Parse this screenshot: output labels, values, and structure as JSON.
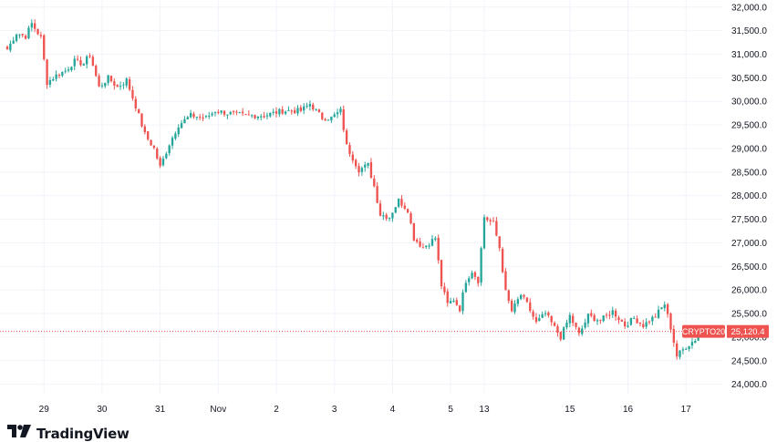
{
  "brand": {
    "name": "TradingView",
    "logo_icon": "tradingview-logo-icon"
  },
  "colors": {
    "up": "#26a69a",
    "down": "#ef5350",
    "grid": "#f0f3fa",
    "price_line": "#ef5350",
    "label_bg": "#ef5350",
    "label_text": "#ffffff"
  },
  "price_label": {
    "symbol": "CRYPTO20",
    "value": "25,120.4"
  },
  "chart_data": {
    "type": "candlestick",
    "y_axis": {
      "position": "right",
      "range": [
        23800,
        32150
      ],
      "ticks": [
        {
          "value": 24000,
          "label": "24,000.0"
        },
        {
          "value": 24500,
          "label": "24,500.0"
        },
        {
          "value": 25000,
          "label": "25,000.0"
        },
        {
          "value": 25500,
          "label": "25,500.0"
        },
        {
          "value": 26000,
          "label": "26,000.0"
        },
        {
          "value": 26500,
          "label": "26,500.0"
        },
        {
          "value": 27000,
          "label": "27,000.0"
        },
        {
          "value": 27500,
          "label": "27,500.0"
        },
        {
          "value": 28000,
          "label": "28,000.0"
        },
        {
          "value": 28500,
          "label": "28,500.0"
        },
        {
          "value": 29000,
          "label": "29,000.0"
        },
        {
          "value": 29500,
          "label": "29,500.0"
        },
        {
          "value": 30000,
          "label": "30,000.0"
        },
        {
          "value": 30500,
          "label": "30,500.0"
        },
        {
          "value": 31000,
          "label": "31,000.0"
        },
        {
          "value": 31500,
          "label": "31,500.0"
        },
        {
          "value": 32000,
          "label": "32,000.0"
        }
      ]
    },
    "x_axis": {
      "ticks": [
        {
          "index": 12,
          "label": "29"
        },
        {
          "index": 31,
          "label": "30"
        },
        {
          "index": 50,
          "label": "31"
        },
        {
          "index": 69,
          "label": "Nov"
        },
        {
          "index": 88,
          "label": "2"
        },
        {
          "index": 107,
          "label": "3"
        },
        {
          "index": 126,
          "label": "4"
        },
        {
          "index": 145,
          "label": "5"
        },
        {
          "index": 156,
          "label": "13"
        },
        {
          "index": 184,
          "label": "15"
        },
        {
          "index": 203,
          "label": "16"
        },
        {
          "index": 222,
          "label": "17"
        }
      ]
    },
    "grid": true,
    "last_price": 25120.4,
    "anchors": [
      [
        0,
        31100
      ],
      [
        3,
        31450
      ],
      [
        6,
        31380
      ],
      [
        8,
        31650
      ],
      [
        11,
        31350
      ],
      [
        13,
        30400
      ],
      [
        16,
        30550
      ],
      [
        19,
        30650
      ],
      [
        22,
        30850
      ],
      [
        25,
        30800
      ],
      [
        27,
        31000
      ],
      [
        30,
        30300
      ],
      [
        33,
        30500
      ],
      [
        36,
        30300
      ],
      [
        39,
        30450
      ],
      [
        42,
        29900
      ],
      [
        45,
        29300
      ],
      [
        48,
        29000
      ],
      [
        50,
        28600
      ],
      [
        53,
        29100
      ],
      [
        56,
        29500
      ],
      [
        60,
        29700
      ],
      [
        65,
        29650
      ],
      [
        68,
        29800
      ],
      [
        72,
        29750
      ],
      [
        78,
        29700
      ],
      [
        84,
        29700
      ],
      [
        90,
        29800
      ],
      [
        96,
        29800
      ],
      [
        99,
        29950
      ],
      [
        103,
        29650
      ],
      [
        106,
        29650
      ],
      [
        109,
        29800
      ],
      [
        111,
        29050
      ],
      [
        115,
        28550
      ],
      [
        118,
        28650
      ],
      [
        120,
        28200
      ],
      [
        122,
        27600
      ],
      [
        125,
        27550
      ],
      [
        128,
        27900
      ],
      [
        131,
        27700
      ],
      [
        133,
        27100
      ],
      [
        136,
        26900
      ],
      [
        140,
        27100
      ],
      [
        142,
        26100
      ],
      [
        144,
        25700
      ],
      [
        146,
        25800
      ],
      [
        148,
        25600
      ],
      [
        150,
        26200
      ],
      [
        152,
        26400
      ],
      [
        154,
        26200
      ],
      [
        156,
        27550
      ],
      [
        159,
        27400
      ],
      [
        161,
        26900
      ],
      [
        163,
        25950
      ],
      [
        165,
        25550
      ],
      [
        168,
        25900
      ],
      [
        170,
        25700
      ],
      [
        173,
        25300
      ],
      [
        176,
        25500
      ],
      [
        178,
        25300
      ],
      [
        181,
        25000
      ],
      [
        184,
        25450
      ],
      [
        187,
        25050
      ],
      [
        190,
        25450
      ],
      [
        194,
        25350
      ],
      [
        198,
        25550
      ],
      [
        202,
        25250
      ],
      [
        205,
        25400
      ],
      [
        208,
        25250
      ],
      [
        212,
        25450
      ],
      [
        215,
        25700
      ],
      [
        217,
        25200
      ],
      [
        219,
        24600
      ],
      [
        222,
        24800
      ],
      [
        225,
        24950
      ],
      [
        226,
        25120
      ]
    ]
  }
}
